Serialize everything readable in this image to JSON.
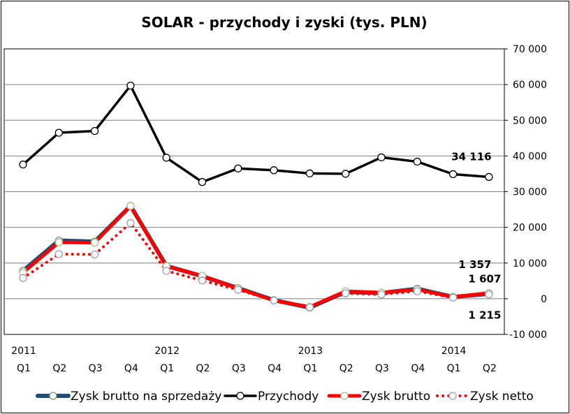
{
  "chart_data": {
    "type": "line",
    "title": "SOLAR - przychody i zyski (tys. PLN)",
    "xlabel": "",
    "ylabel": "",
    "ylim": [
      -10000,
      70000
    ],
    "yticks": [
      -10000,
      0,
      10000,
      20000,
      30000,
      40000,
      50000,
      60000,
      70000
    ],
    "ytick_labels": [
      "-10 000",
      "0",
      "10 000",
      "20 000",
      "30 000",
      "40 000",
      "50 000",
      "60 000",
      "70 000"
    ],
    "y_axis_side": "right",
    "grid": true,
    "legend_position": "bottom",
    "categories": [
      "2011 Q1",
      "2011 Q2",
      "2011 Q3",
      "2011 Q4",
      "2012 Q1",
      "2012 Q2",
      "2012 Q3",
      "2012 Q4",
      "2013 Q1",
      "2013 Q2",
      "2013 Q3",
      "2013 Q4",
      "2014 Q1",
      "2014 Q2"
    ],
    "quarter_labels": [
      "Q1",
      "Q2",
      "Q3",
      "Q4",
      "Q1",
      "Q2",
      "Q3",
      "Q4",
      "Q1",
      "Q2",
      "Q3",
      "Q4",
      "Q1",
      "Q2"
    ],
    "year_labels": [
      {
        "index": 0,
        "label": "2011"
      },
      {
        "index": 4,
        "label": "2012"
      },
      {
        "index": 8,
        "label": "2013"
      },
      {
        "index": 12,
        "label": "2014"
      }
    ],
    "series": [
      {
        "name": "Zysk brutto na sprzedaży",
        "color": "#1f4e79",
        "style": "solid",
        "values": [
          7800,
          16300,
          16000,
          26000,
          9200,
          6300,
          3000,
          -400,
          -2500,
          1900,
          1600,
          2800,
          500,
          1357
        ]
      },
      {
        "name": "Przychody",
        "color": "#000000",
        "style": "solid",
        "values": [
          37600,
          46500,
          47000,
          59700,
          39500,
          32700,
          36500,
          36000,
          35100,
          35000,
          39600,
          38400,
          34900,
          34116
        ]
      },
      {
        "name": "Zysk brutto",
        "color": "#ff0000",
        "style": "solid",
        "values": [
          7300,
          15800,
          15700,
          26000,
          9100,
          6400,
          2900,
          -500,
          -2300,
          2100,
          1700,
          2600,
          500,
          1607
        ]
      },
      {
        "name": "Zysk netto",
        "color": "#ff0000",
        "style": "dotted",
        "values": [
          5800,
          12500,
          12400,
          21200,
          7800,
          5100,
          2500,
          -500,
          -2400,
          1500,
          1200,
          2100,
          300,
          1215
        ]
      }
    ],
    "data_labels": [
      {
        "series": "Przychody",
        "index": 13,
        "text": "34 116"
      },
      {
        "series": "Zysk brutto na sprzedaży",
        "index": 13,
        "text": "1 357"
      },
      {
        "series": "Zysk brutto",
        "index": 13,
        "text": "1 607"
      },
      {
        "series": "Zysk netto",
        "index": 13,
        "text": "1 215"
      }
    ]
  }
}
